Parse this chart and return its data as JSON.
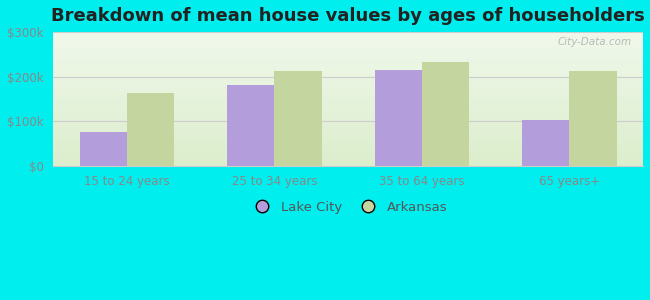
{
  "title": "Breakdown of mean house values by ages of householders",
  "categories": [
    "15 to 24 years",
    "25 to 34 years",
    "35 to 64 years",
    "65 years+"
  ],
  "lake_city_values": [
    75000,
    182000,
    215000,
    103000
  ],
  "arkansas_values": [
    163000,
    213000,
    233000,
    213000
  ],
  "lake_city_color": "#b39ddb",
  "arkansas_color": "#c5d5a0",
  "background_color": "#00eeee",
  "ylim": [
    0,
    300000
  ],
  "yticks": [
    0,
    100000,
    200000,
    300000
  ],
  "ytick_labels": [
    "$0",
    "$100k",
    "$200k",
    "$300k"
  ],
  "legend_labels": [
    "Lake City",
    "Arkansas"
  ],
  "bar_width": 0.32,
  "title_fontsize": 13,
  "tick_fontsize": 8.5,
  "legend_fontsize": 9.5,
  "watermark": "City-Data.com"
}
